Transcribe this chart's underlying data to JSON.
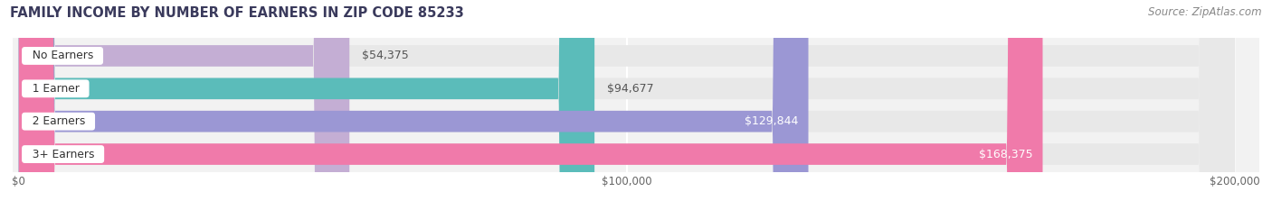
{
  "title": "FAMILY INCOME BY NUMBER OF EARNERS IN ZIP CODE 85233",
  "source": "Source: ZipAtlas.com",
  "categories": [
    "No Earners",
    "1 Earner",
    "2 Earners",
    "3+ Earners"
  ],
  "values": [
    54375,
    94677,
    129844,
    168375
  ],
  "value_labels": [
    "$54,375",
    "$94,677",
    "$129,844",
    "$168,375"
  ],
  "bar_colors": [
    "#c4aed4",
    "#5bbcba",
    "#9b97d4",
    "#f07aaa"
  ],
  "bar_bg_color": "#e8e8e8",
  "xlim_max": 200000,
  "xtick_labels": [
    "$0",
    "$100,000",
    "$200,000"
  ],
  "title_fontsize": 10.5,
  "source_fontsize": 8.5,
  "bar_height": 0.65,
  "axes_bg_color": "#f2f2f2",
  "fig_bg_color": "#ffffff",
  "label_inside_threshold": 120000,
  "label_inside_color": "#ffffff",
  "label_outside_color": "#555555"
}
